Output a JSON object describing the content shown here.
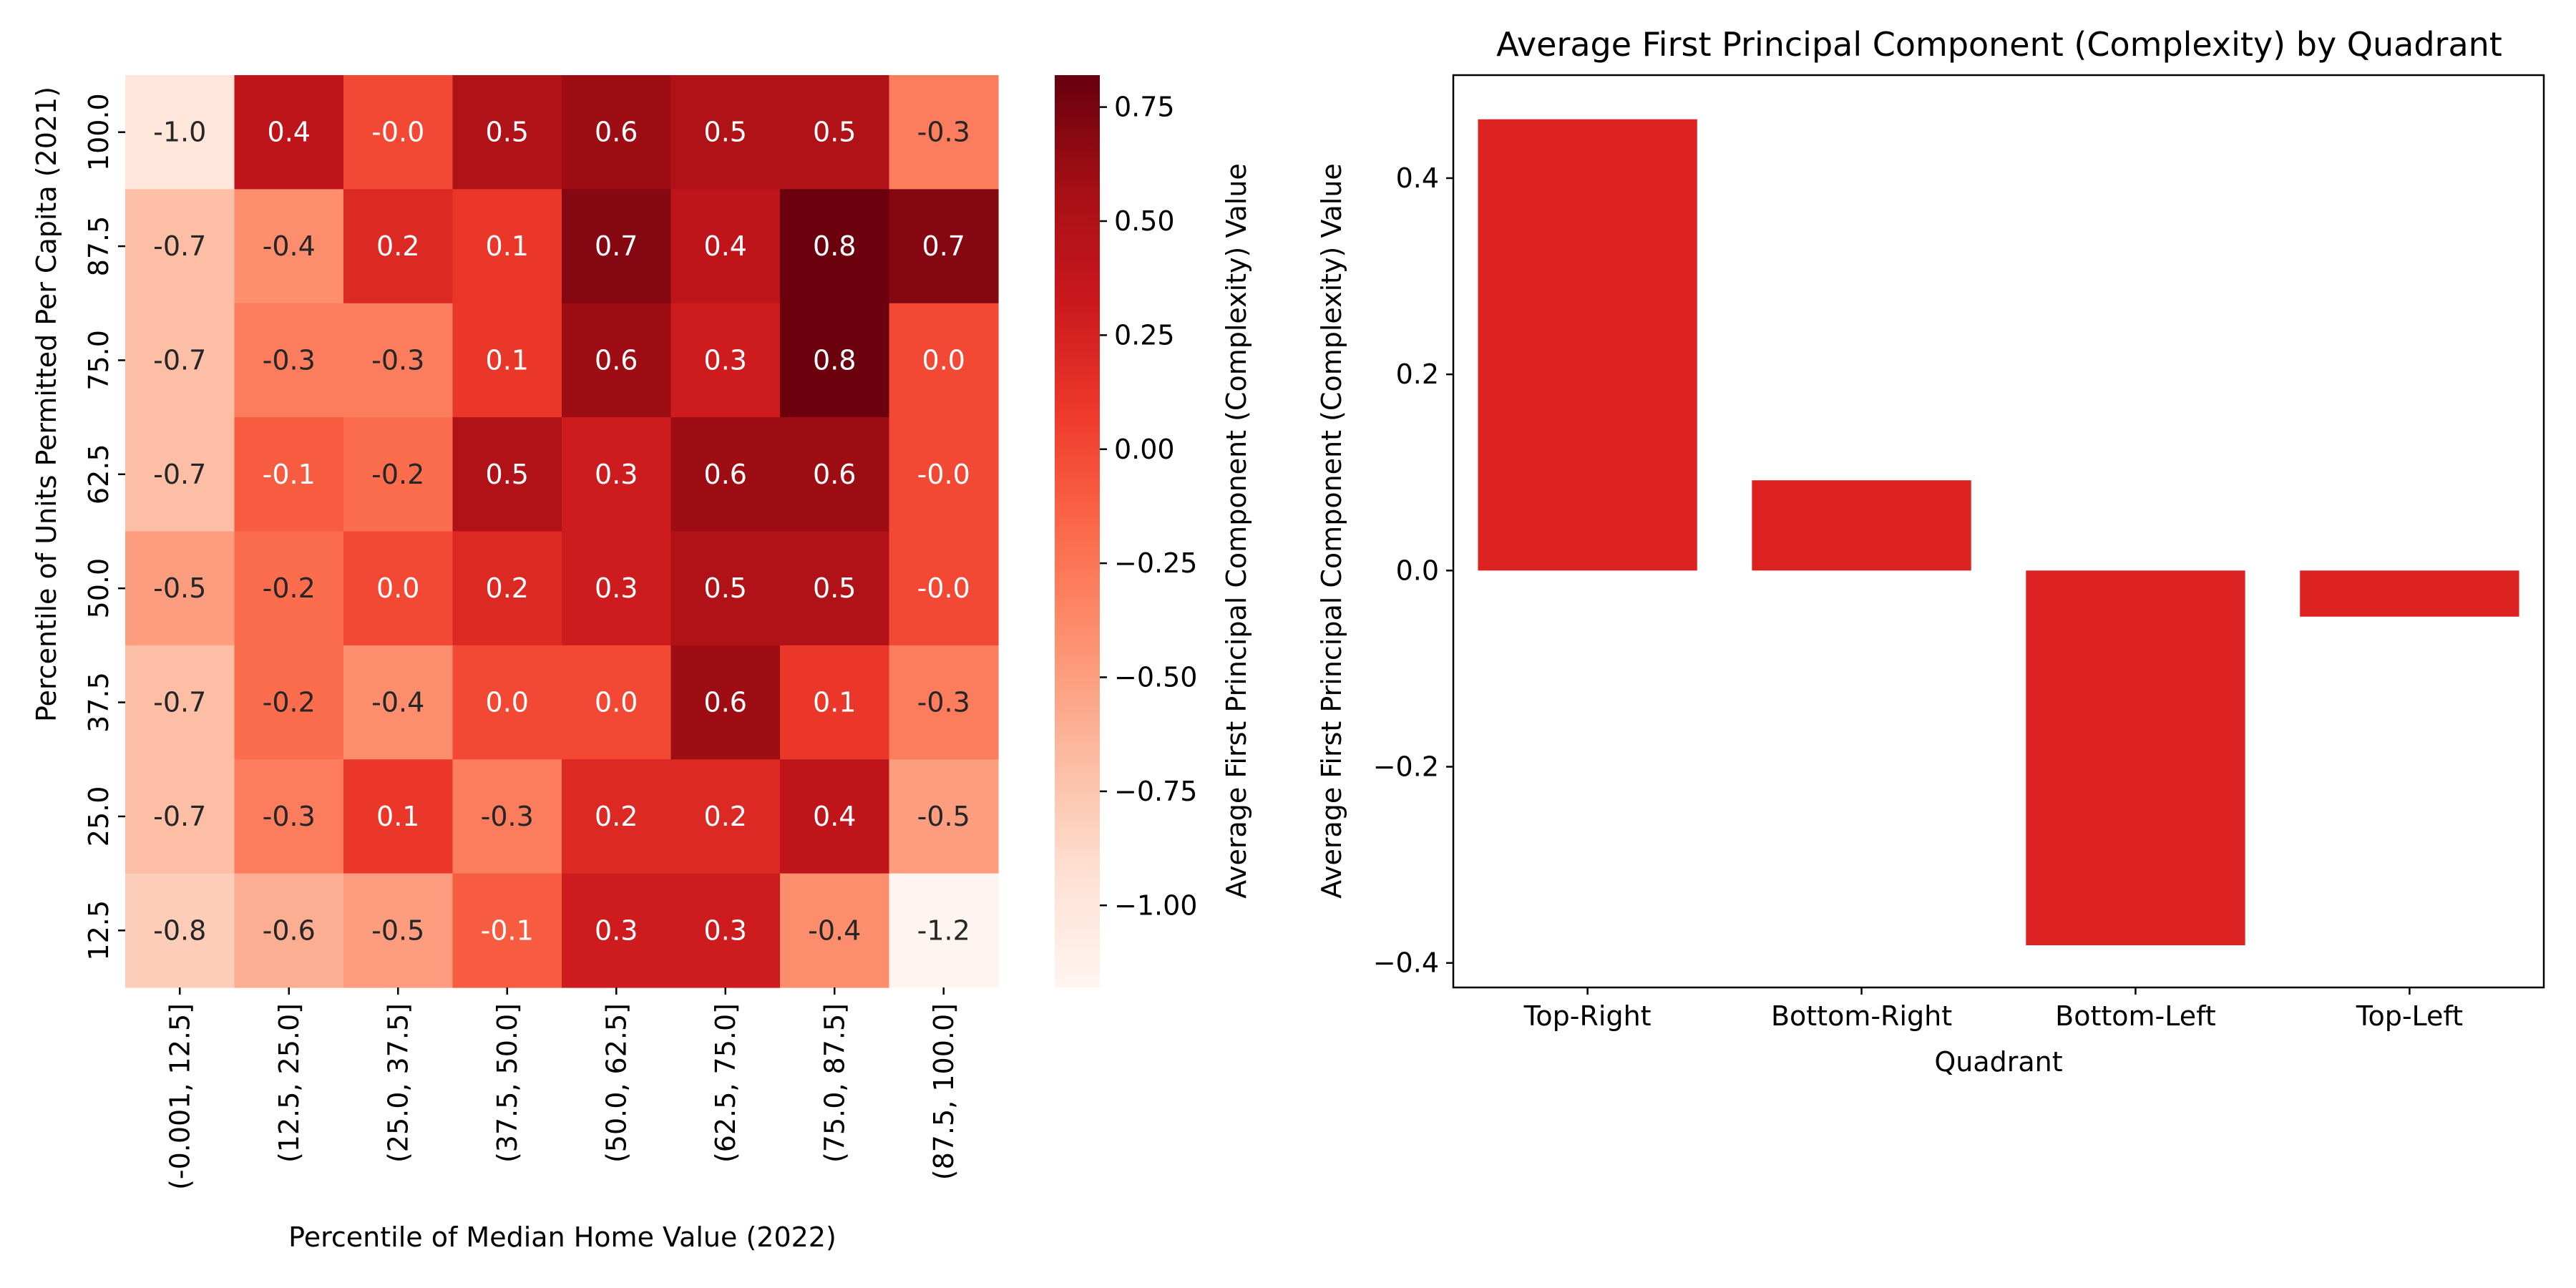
{
  "chart_data": [
    {
      "type": "heatmap",
      "xlabel": "Percentile of Median Home Value (2022)",
      "ylabel": "Percentile of Units Permitted Per Capita (2021)",
      "x_categories": [
        "(-0.001, 12.5]",
        "(12.5, 25.0]",
        "(25.0, 37.5]",
        "(37.5, 50.0]",
        "(50.0, 62.5]",
        "(62.5, 75.0]",
        "(75.0, 87.5]",
        "(87.5, 100.0]"
      ],
      "y_categories": [
        "100.0",
        "87.5",
        "75.0",
        "62.5",
        "50.0",
        "37.5",
        "25.0",
        "12.5"
      ],
      "values": [
        [
          -1.0,
          0.4,
          -0.0,
          0.5,
          0.6,
          0.5,
          0.5,
          -0.3
        ],
        [
          -0.7,
          -0.4,
          0.2,
          0.1,
          0.7,
          0.4,
          0.8,
          0.7
        ],
        [
          -0.7,
          -0.3,
          -0.3,
          0.1,
          0.6,
          0.3,
          0.8,
          0.0
        ],
        [
          -0.7,
          -0.1,
          -0.2,
          0.5,
          0.3,
          0.6,
          0.6,
          -0.0
        ],
        [
          -0.5,
          -0.2,
          0.0,
          0.2,
          0.3,
          0.5,
          0.5,
          -0.0
        ],
        [
          -0.7,
          -0.2,
          -0.4,
          0.0,
          0.0,
          0.6,
          0.1,
          -0.3
        ],
        [
          -0.7,
          -0.3,
          0.1,
          -0.3,
          0.2,
          0.2,
          0.4,
          -0.5
        ],
        [
          -0.8,
          -0.6,
          -0.5,
          -0.1,
          0.3,
          0.3,
          -0.4,
          -1.2
        ]
      ],
      "labels": [
        [
          "-1.0",
          "0.4",
          "-0.0",
          "0.5",
          "0.6",
          "0.5",
          "0.5",
          "-0.3"
        ],
        [
          "-0.7",
          "-0.4",
          "0.2",
          "0.1",
          "0.7",
          "0.4",
          "0.8",
          "0.7"
        ],
        [
          "-0.7",
          "-0.3",
          "-0.3",
          "0.1",
          "0.6",
          "0.3",
          "0.8",
          "0.0"
        ],
        [
          "-0.7",
          "-0.1",
          "-0.2",
          "0.5",
          "0.3",
          "0.6",
          "0.6",
          "-0.0"
        ],
        [
          "-0.5",
          "-0.2",
          "0.0",
          "0.2",
          "0.3",
          "0.5",
          "0.5",
          "-0.0"
        ],
        [
          "-0.7",
          "-0.2",
          "-0.4",
          "0.0",
          "0.0",
          "0.6",
          "0.1",
          "-0.3"
        ],
        [
          "-0.7",
          "-0.3",
          "0.1",
          "-0.3",
          "0.2",
          "0.2",
          "0.4",
          "-0.5"
        ],
        [
          "-0.8",
          "-0.6",
          "-0.5",
          "-0.1",
          "0.3",
          "0.3",
          "-0.4",
          "-1.2"
        ]
      ],
      "colormap": "Reds",
      "colorbar": {
        "label": "Average First Principal Component (Complexity) Value",
        "range": [
          -1.18,
          0.82
        ],
        "ticks": [
          0.75,
          0.5,
          0.25,
          0.0,
          -0.25,
          -0.5,
          -0.75,
          -1.0
        ],
        "tick_labels": [
          "0.75",
          "0.50",
          "0.25",
          "0.00",
          "−0.25",
          "−0.50",
          "−0.75",
          "−1.00"
        ]
      }
    },
    {
      "type": "bar",
      "title": "Average First Principal Component (Complexity) by Quadrant",
      "xlabel": "Quadrant",
      "ylabel": "Average First Principal Component (Complexity) Value",
      "categories": [
        "Top-Right",
        "Bottom-Right",
        "Bottom-Left",
        "Top-Left"
      ],
      "values": [
        0.46,
        0.092,
        -0.382,
        -0.047
      ],
      "ylim": [
        -0.425,
        0.505
      ],
      "yticks": [
        0.4,
        0.2,
        0.0,
        -0.2,
        -0.4
      ],
      "ytick_labels": [
        "0.4",
        "0.2",
        "0.0",
        "−0.2",
        "−0.4"
      ],
      "bar_color": "#dd2222",
      "grid": false
    }
  ]
}
